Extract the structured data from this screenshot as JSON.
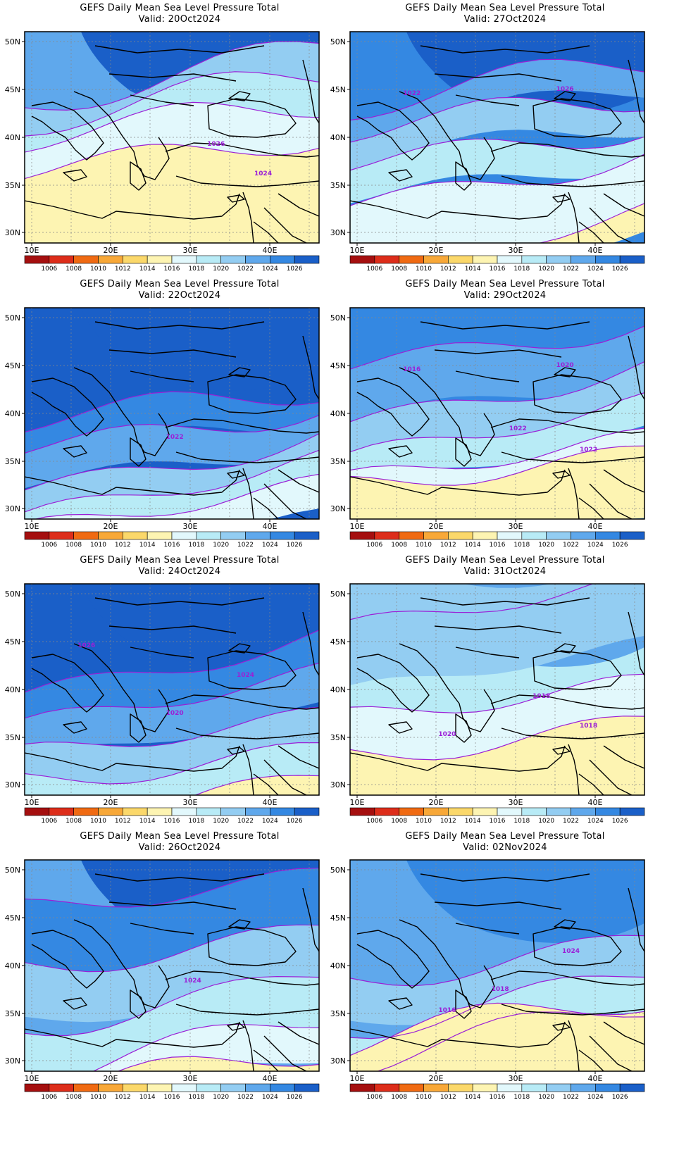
{
  "colors": {
    "1006": "#a50f0f",
    "1008": "#dd2d1a",
    "1010": "#f06a12",
    "1012": "#f8a838",
    "1014": "#fbd86a",
    "1016": "#fdf4b2",
    "1018": "#e2f8fc",
    "1020": "#b8ebf6",
    "1022": "#93cdf2",
    "1024": "#5fa8ec",
    "1026": "#3488e2",
    "1028": "#1a5fc8",
    "contour": "#9b1fd6",
    "coast": "#000000"
  },
  "colorbar": {
    "labels": [
      "1006",
      "1008",
      "1010",
      "1012",
      "1014",
      "1016",
      "1018",
      "1020",
      "1022",
      "1024",
      "1026"
    ]
  },
  "axes": {
    "lat_labels": [
      "50N",
      "45N",
      "40N",
      "35N",
      "30N"
    ],
    "lon_labels": [
      "10E",
      "20E",
      "30E",
      "40E"
    ]
  },
  "panels": [
    {
      "title": "GEFS Daily Mean Sea Level Pressure Total",
      "valid": "Valid: 20Oct2024",
      "bg": "1024",
      "bands": [
        [
          "1022",
          0.1,
          0.58
        ],
        [
          "1020",
          0.22,
          0.72
        ],
        [
          "1018",
          0.32,
          0.82
        ],
        [
          "1016",
          0.46,
          1.0
        ]
      ],
      "high": "1028",
      "contour_labels": [
        "1026",
        "1024"
      ]
    },
    {
      "title": "GEFS Daily Mean Sea Level Pressure Total",
      "valid": "Valid: 27Oct2024",
      "bg": "1026",
      "bands": [
        [
          "1024",
          0.15,
          0.28
        ],
        [
          "1022",
          0.28,
          0.42
        ],
        [
          "1020",
          0.42,
          0.58
        ],
        [
          "1018",
          0.58,
          0.88
        ],
        [
          "1016",
          0.88,
          1.0
        ]
      ],
      "high": "1028",
      "contour_labels": [
        "1026",
        "1022"
      ]
    },
    {
      "title": "GEFS Daily Mean Sea Level Pressure Total",
      "valid": "Valid: 22Oct2024",
      "bg": "1028",
      "bands": [
        [
          "1026",
          0.35,
          0.5
        ],
        [
          "1024",
          0.45,
          0.62
        ],
        [
          "1022",
          0.62,
          0.75
        ],
        [
          "1020",
          0.75,
          0.88
        ],
        [
          "1018",
          0.85,
          1.0
        ]
      ],
      "high": "1028",
      "contour_labels": [
        "1022"
      ]
    },
    {
      "title": "GEFS Daily Mean Sea Level Pressure Total",
      "valid": "Valid: 29Oct2024",
      "bg": "1026",
      "bands": [
        [
          "1024",
          0.05,
          0.3
        ],
        [
          "1022",
          0.3,
          0.48
        ],
        [
          "1020",
          0.48,
          0.62
        ],
        [
          "1018",
          0.62,
          0.8
        ],
        [
          "1016",
          0.66,
          1.0
        ]
      ],
      "high": "1026",
      "contour_labels": [
        "1022",
        "1022",
        "1020",
        "1016"
      ]
    },
    {
      "title": "GEFS Daily Mean Sea Level Pressure Total",
      "valid": "Valid: 24Oct2024",
      "bg": "1028",
      "bands": [
        [
          "1026",
          0.28,
          0.45
        ],
        [
          "1024",
          0.45,
          0.62
        ],
        [
          "1022",
          0.62,
          0.8
        ],
        [
          "1020",
          0.75,
          0.92
        ],
        [
          "1016",
          0.9,
          1.0
        ]
      ],
      "high": "1028",
      "contour_labels": [
        "1026",
        "1024",
        "1020"
      ]
    },
    {
      "title": "GEFS Daily Mean Sea Level Pressure Total",
      "valid": "Valid: 31Oct2024",
      "bg": "1020",
      "bands": [
        [
          "1022",
          0.0,
          0.3
        ],
        [
          "1018",
          0.45,
          1.0
        ],
        [
          "1016",
          0.62,
          1.0
        ]
      ],
      "high": "1024",
      "contour_labels": [
        "1020",
        "1018",
        "1018"
      ]
    },
    {
      "title": "GEFS Daily Mean Sea Level Pressure Total",
      "valid": "Valid: 26Oct2024",
      "bg": "1024",
      "bands": [
        [
          "1026",
          0.05,
          0.4
        ],
        [
          "1022",
          0.3,
          0.55
        ],
        [
          "1020",
          0.55,
          0.8
        ],
        [
          "1018",
          0.78,
          0.95
        ],
        [
          "1016",
          0.92,
          1.0
        ]
      ],
      "high": "1028",
      "contour_labels": [
        "1024"
      ]
    },
    {
      "title": "GEFS Daily Mean Sea Level Pressure Total",
      "valid": "Valid: 02Nov2024",
      "bg": "1024",
      "bands": [
        [
          "1022",
          0.35,
          0.55
        ],
        [
          "1020",
          0.55,
          0.72
        ],
        [
          "1018",
          0.72,
          0.8
        ],
        [
          "1016",
          0.66,
          1.0
        ]
      ],
      "high": "1026",
      "contour_labels": [
        "1024",
        "1018",
        "1016"
      ]
    }
  ]
}
